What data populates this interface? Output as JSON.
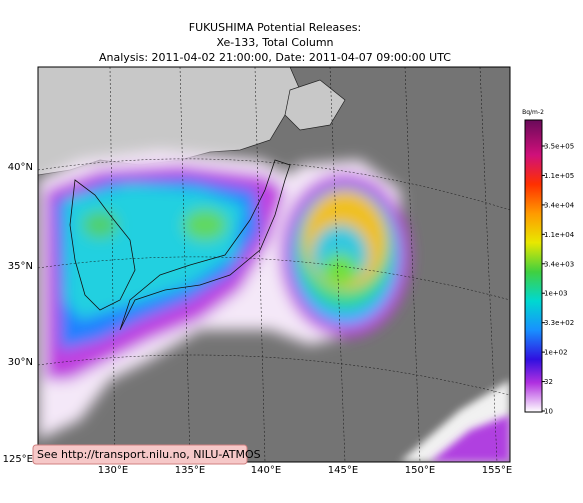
{
  "header": {
    "title": "FUKUSHIMA Potential Releases:",
    "subtitle": "Xe-133, Total Column",
    "analysis": "Analysis: 2011-04-02  21:00:00, Date: 2011-04-07  09:00:00 UTC"
  },
  "map": {
    "lat_labels": [
      "40°N",
      "35°N",
      "30°N",
      "125°E"
    ],
    "lon_labels": [
      "130°E",
      "135°E",
      "140°E",
      "145°E",
      "150°E",
      "155°E"
    ],
    "note": "See http://transport.nilu.no, NILU-ATMOS"
  },
  "colorbar": {
    "units": "Bq/m-2",
    "labels": [
      "3.5e+05",
      "1.1e+05",
      "3.4e+04",
      "1.1e+04",
      "3.4e+03",
      "1e+03",
      "3.3e+02",
      "1e+02",
      "32",
      "10"
    ]
  }
}
